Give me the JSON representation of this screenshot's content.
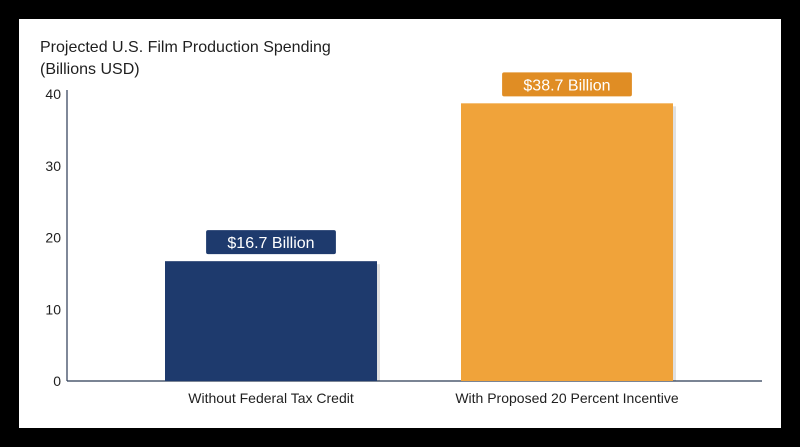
{
  "chart_data": {
    "type": "bar",
    "title": "Projected U.S. Film Production Spending",
    "subtitle": "(Billions USD)",
    "categories": [
      "Without Federal Tax Credit",
      "With Proposed 20 Percent Incentive"
    ],
    "values": [
      16.7,
      38.7
    ],
    "data_labels": [
      "$16.7 Billion",
      "$38.7 Billion"
    ],
    "colors": [
      "#1e3a6d",
      "#f0a33a"
    ],
    "label_colors": [
      "#1e3a6d",
      "#e08d24"
    ],
    "ylim": [
      0,
      40
    ],
    "yticks": [
      0,
      10,
      20,
      30,
      40
    ],
    "grid": false,
    "legend": "none"
  }
}
